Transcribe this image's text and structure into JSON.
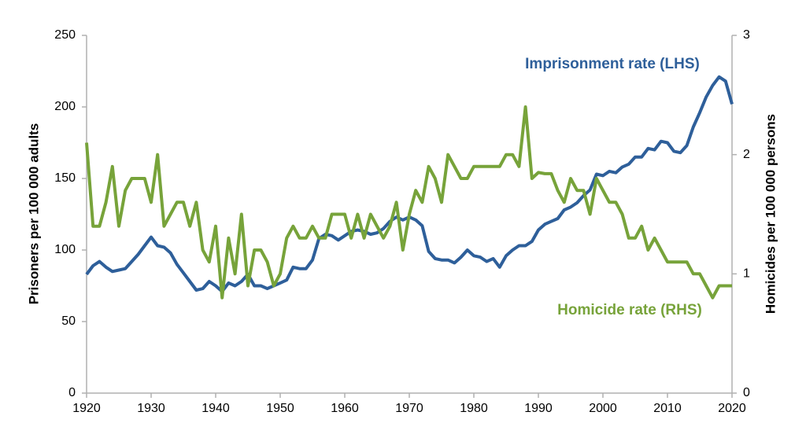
{
  "chart_data": {
    "type": "line",
    "y_label": "Prisoners per 100 000 adults",
    "y2_label": "Homicides per 100 000 persons",
    "x": [
      1920,
      1921,
      1922,
      1923,
      1924,
      1925,
      1926,
      1927,
      1928,
      1929,
      1930,
      1931,
      1932,
      1933,
      1934,
      1935,
      1936,
      1937,
      1938,
      1939,
      1940,
      1941,
      1942,
      1943,
      1944,
      1945,
      1946,
      1947,
      1948,
      1949,
      1950,
      1951,
      1952,
      1953,
      1954,
      1955,
      1956,
      1957,
      1958,
      1959,
      1960,
      1961,
      1962,
      1963,
      1964,
      1965,
      1966,
      1967,
      1968,
      1969,
      1970,
      1971,
      1972,
      1973,
      1974,
      1975,
      1976,
      1977,
      1978,
      1979,
      1980,
      1981,
      1982,
      1983,
      1984,
      1985,
      1986,
      1987,
      1988,
      1989,
      1990,
      1991,
      1992,
      1993,
      1994,
      1995,
      1996,
      1997,
      1998,
      1999,
      2000,
      2001,
      2002,
      2003,
      2004,
      2005,
      2006,
      2007,
      2008,
      2009,
      2010,
      2011,
      2012,
      2013,
      2014,
      2015,
      2016,
      2017,
      2018,
      2019,
      2020
    ],
    "series": [
      {
        "name": "Imprisonment rate (LHS)",
        "color": "#2e5f9a",
        "axis": "y",
        "values": [
          83,
          89,
          92,
          88,
          85,
          86,
          87,
          92,
          97,
          103,
          109,
          103,
          102,
          98,
          90,
          84,
          78,
          72,
          73,
          78,
          75,
          71,
          77,
          75,
          78,
          83,
          75,
          75,
          73,
          75,
          77,
          79,
          88,
          87,
          87,
          93,
          108,
          111,
          110,
          107,
          110,
          113,
          114,
          113,
          111,
          112,
          115,
          120,
          123,
          121,
          123,
          121,
          117,
          99,
          94,
          93,
          93,
          91,
          95,
          100,
          96,
          95,
          92,
          94,
          88,
          96,
          100,
          103,
          103,
          106,
          114,
          118,
          120,
          122,
          128,
          130,
          133,
          138,
          142,
          153,
          152,
          155,
          154,
          158,
          160,
          165,
          165,
          171,
          170,
          176,
          175,
          169,
          168,
          173,
          186,
          196,
          207,
          215,
          221,
          218,
          202
        ]
      },
      {
        "name": "Homicide rate (RHS)",
        "color": "#77a33a",
        "axis": "y2",
        "values": [
          2.1,
          1.4,
          1.4,
          1.6,
          1.9,
          1.4,
          1.7,
          1.8,
          1.8,
          1.8,
          1.6,
          2.0,
          1.4,
          1.5,
          1.6,
          1.6,
          1.4,
          1.6,
          1.2,
          1.1,
          1.4,
          0.8,
          1.3,
          1.0,
          1.5,
          0.9,
          1.2,
          1.2,
          1.1,
          0.9,
          1.0,
          1.3,
          1.4,
          1.3,
          1.3,
          1.4,
          1.3,
          1.3,
          1.5,
          1.5,
          1.5,
          1.3,
          1.5,
          1.3,
          1.5,
          1.4,
          1.3,
          1.4,
          1.6,
          1.2,
          1.5,
          1.7,
          1.6,
          1.9,
          1.8,
          1.6,
          2.0,
          1.9,
          1.8,
          1.8,
          1.9,
          1.9,
          1.9,
          1.9,
          1.9,
          2.0,
          2.0,
          1.9,
          2.4,
          1.8,
          1.85,
          1.84,
          1.84,
          1.7,
          1.6,
          1.8,
          1.7,
          1.7,
          1.5,
          1.8,
          1.7,
          1.6,
          1.6,
          1.5,
          1.3,
          1.3,
          1.4,
          1.2,
          1.3,
          1.2,
          1.1,
          1.1,
          1.1,
          1.1,
          1.0,
          1.0,
          0.9,
          0.8,
          0.9,
          0.9,
          0.9
        ]
      }
    ],
    "xlim": [
      1920,
      2020
    ],
    "xticks": [
      1920,
      1930,
      1940,
      1950,
      1960,
      1970,
      1980,
      1990,
      2000,
      2010,
      2020
    ],
    "ylim": [
      0,
      250
    ],
    "yticks": [
      0,
      50,
      100,
      150,
      200,
      250
    ],
    "y2lim": [
      0,
      3
    ],
    "y2ticks": [
      0,
      1,
      2,
      3
    ],
    "grid": false
  }
}
